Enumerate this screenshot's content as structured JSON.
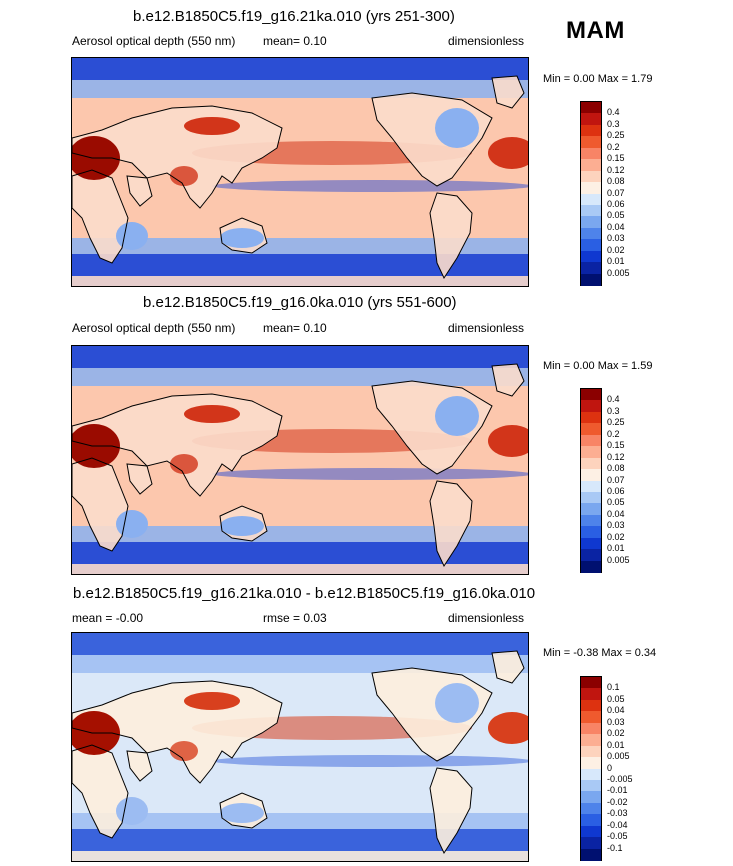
{
  "season": "MAM",
  "panels": [
    {
      "title": "b.e12.B1850C5.f19_g16.21ka.010 (yrs 251-300)",
      "left_label": "Aerosol optical depth (550 nm)",
      "center_label": "mean=  0.10",
      "right_label": "dimensionless",
      "minmax": "Min =   0.00 Max =   1.79",
      "colorbar": {
        "labels": [
          "0.4",
          "0.3",
          "0.25",
          "0.2",
          "0.15",
          "0.12",
          "0.08",
          "0.07",
          "0.06",
          "0.05",
          "0.04",
          "0.03",
          "0.02",
          "0.01",
          "0.005"
        ],
        "colors": [
          "#8b0000",
          "#c0150f",
          "#dd3210",
          "#ef5a2e",
          "#f88466",
          "#fcae92",
          "#fdd3bd",
          "#fdf0e4",
          "#d7e8fb",
          "#a9c9f5",
          "#7aa7ef",
          "#4e83ea",
          "#2a5fe3",
          "#0f38d0",
          "#0a23a3",
          "#001070"
        ]
      },
      "map_palette": {
        "ocean": "#fcc7ad",
        "land": "#fbdccb",
        "low": "#2b4ed4",
        "mid": "#8ab0f0",
        "high": "#d2351a",
        "peak": "#9a0b00"
      }
    },
    {
      "title": "b.e12.B1850C5.f19_g16.0ka.010 (yrs 551-600)",
      "left_label": "Aerosol optical depth (550 nm)",
      "center_label": "mean=  0.10",
      "right_label": "dimensionless",
      "minmax": "Min =   0.00 Max =   1.59",
      "colorbar": {
        "labels": [
          "0.4",
          "0.3",
          "0.25",
          "0.2",
          "0.15",
          "0.12",
          "0.08",
          "0.07",
          "0.06",
          "0.05",
          "0.04",
          "0.03",
          "0.02",
          "0.01",
          "0.005"
        ],
        "colors": [
          "#8b0000",
          "#c0150f",
          "#dd3210",
          "#ef5a2e",
          "#f88466",
          "#fcae92",
          "#fdd3bd",
          "#fdf0e4",
          "#d7e8fb",
          "#a9c9f5",
          "#7aa7ef",
          "#4e83ea",
          "#2a5fe3",
          "#0f38d0",
          "#0a23a3",
          "#001070"
        ]
      },
      "map_palette": {
        "ocean": "#fcc7ad",
        "land": "#fbdccb",
        "low": "#2b4ed4",
        "mid": "#8ab0f0",
        "high": "#d2351a",
        "peak": "#9a0b00"
      }
    },
    {
      "title": "b.e12.B1850C5.f19_g16.21ka.010 - b.e12.B1850C5.f19_g16.0ka.010",
      "left_label": "mean =  -0.00",
      "center_label": "rmse =  0.03",
      "right_label": "dimensionless",
      "minmax": "Min =  -0.38 Max =   0.34",
      "colorbar": {
        "labels": [
          "0.1",
          "0.05",
          "0.04",
          "0.03",
          "0.02",
          "0.01",
          "0.005",
          "0",
          "-0.005",
          "-0.01",
          "-0.02",
          "-0.03",
          "-0.04",
          "-0.05",
          "-0.1"
        ],
        "colors": [
          "#8b0000",
          "#c0150f",
          "#dd3210",
          "#ef5a2e",
          "#f88466",
          "#fcae92",
          "#fdd3bd",
          "#fdf0e4",
          "#d7e8fb",
          "#a9c9f5",
          "#7aa7ef",
          "#4e83ea",
          "#2a5fe3",
          "#0f38d0",
          "#0a23a3",
          "#001070"
        ]
      },
      "map_palette": {
        "ocean": "#dbe8f8",
        "land": "#fdeedd",
        "low": "#3a63dc",
        "mid": "#9cbcf2",
        "high": "#d8401e",
        "peak": "#a51000"
      }
    }
  ]
}
